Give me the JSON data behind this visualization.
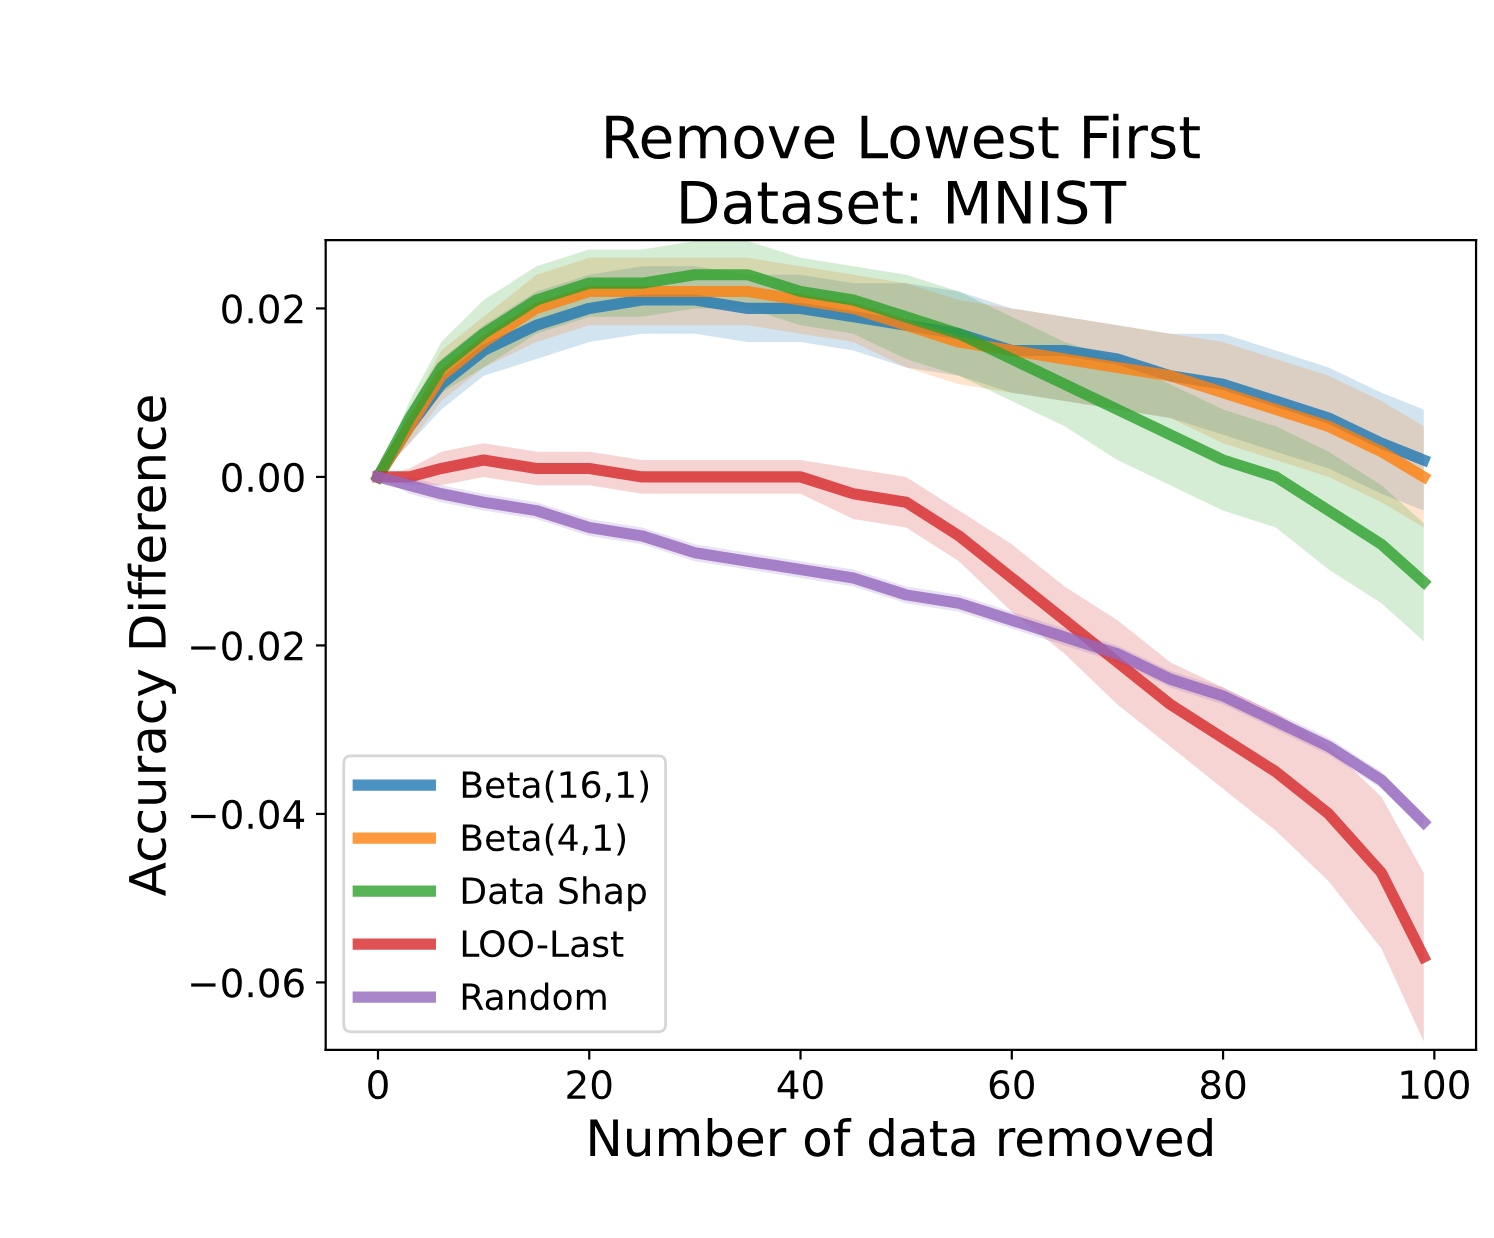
{
  "chart_data": {
    "type": "line",
    "title": "Remove Lowest First\nDataset: MNIST",
    "xlabel": "Number of data removed",
    "ylabel": "Accuracy Difference",
    "x": [
      0,
      3,
      6,
      10,
      15,
      20,
      25,
      30,
      35,
      40,
      45,
      50,
      55,
      60,
      65,
      70,
      75,
      80,
      85,
      90,
      95,
      99
    ],
    "series": [
      {
        "name": "Beta(16,1)",
        "color": "#1f77b4",
        "values": [
          0,
          0.006,
          0.011,
          0.015,
          0.018,
          0.02,
          0.021,
          0.021,
          0.02,
          0.02,
          0.019,
          0.018,
          0.017,
          0.015,
          0.015,
          0.014,
          0.012,
          0.011,
          0.009,
          0.007,
          0.004,
          0.002
        ],
        "lower": [
          0,
          0.004,
          0.008,
          0.012,
          0.014,
          0.016,
          0.017,
          0.017,
          0.016,
          0.016,
          0.015,
          0.013,
          0.012,
          0.01,
          0.009,
          0.008,
          0.007,
          0.005,
          0.003,
          0.001,
          -0.002,
          -0.004
        ],
        "upper": [
          0,
          0.008,
          0.014,
          0.018,
          0.022,
          0.024,
          0.025,
          0.025,
          0.024,
          0.024,
          0.023,
          0.023,
          0.022,
          0.02,
          0.019,
          0.018,
          0.017,
          0.017,
          0.015,
          0.013,
          0.01,
          0.008
        ]
      },
      {
        "name": "Beta(4,1)",
        "color": "#ff7f0e",
        "values": [
          0,
          0.006,
          0.012,
          0.016,
          0.02,
          0.022,
          0.022,
          0.022,
          0.022,
          0.021,
          0.02,
          0.018,
          0.016,
          0.015,
          0.014,
          0.013,
          0.012,
          0.01,
          0.008,
          0.006,
          0.003,
          0
        ],
        "lower": [
          0,
          0.004,
          0.009,
          0.013,
          0.016,
          0.018,
          0.018,
          0.018,
          0.018,
          0.017,
          0.016,
          0.013,
          0.011,
          0.01,
          0.009,
          0.008,
          0.007,
          0.004,
          0.002,
          0,
          -0.003,
          -0.006
        ],
        "upper": [
          0,
          0.008,
          0.015,
          0.019,
          0.024,
          0.026,
          0.026,
          0.026,
          0.026,
          0.025,
          0.024,
          0.023,
          0.021,
          0.02,
          0.019,
          0.018,
          0.017,
          0.016,
          0.014,
          0.012,
          0.009,
          0.006
        ]
      },
      {
        "name": "Data Shap",
        "color": "#2ca02c",
        "values": [
          0,
          0.007,
          0.013,
          0.017,
          0.021,
          0.023,
          0.023,
          0.024,
          0.024,
          0.022,
          0.021,
          0.019,
          0.017,
          0.014,
          0.011,
          0.008,
          0.005,
          0.002,
          0,
          -0.004,
          -0.008,
          -0.0125
        ],
        "lower": [
          0,
          0.005,
          0.01,
          0.013,
          0.017,
          0.019,
          0.019,
          0.02,
          0.02,
          0.018,
          0.017,
          0.014,
          0.012,
          0.009,
          0.006,
          0.002,
          -0.001,
          -0.004,
          -0.006,
          -0.011,
          -0.015,
          -0.0195
        ],
        "upper": [
          0,
          0.009,
          0.016,
          0.021,
          0.025,
          0.027,
          0.027,
          0.028,
          0.028,
          0.026,
          0.025,
          0.024,
          0.022,
          0.019,
          0.016,
          0.014,
          0.011,
          0.008,
          0.006,
          0.003,
          -0.001,
          -0.0055
        ]
      },
      {
        "name": "LOO-Last",
        "color": "#d62728",
        "values": [
          0,
          0,
          0.001,
          0.002,
          0.001,
          0.001,
          0,
          0,
          0,
          0,
          -0.002,
          -0.003,
          -0.007,
          -0.012,
          -0.017,
          -0.022,
          -0.027,
          -0.031,
          -0.035,
          -0.04,
          -0.047,
          -0.057
        ],
        "lower": [
          0,
          -0.001,
          -0.001,
          0,
          -0.001,
          -0.001,
          -0.002,
          -0.002,
          -0.002,
          -0.002,
          -0.005,
          -0.006,
          -0.01,
          -0.016,
          -0.021,
          -0.027,
          -0.032,
          -0.037,
          -0.042,
          -0.048,
          -0.056,
          -0.067
        ],
        "upper": [
          0,
          0.001,
          0.003,
          0.004,
          0.003,
          0.003,
          0.002,
          0.002,
          0.002,
          0.002,
          0.001,
          0,
          -0.004,
          -0.008,
          -0.013,
          -0.017,
          -0.022,
          -0.025,
          -0.028,
          -0.032,
          -0.038,
          -0.047
        ]
      },
      {
        "name": "Random",
        "color": "#9467bd",
        "values": [
          0,
          -0.001,
          -0.002,
          -0.003,
          -0.004,
          -0.006,
          -0.007,
          -0.009,
          -0.01,
          -0.011,
          -0.012,
          -0.014,
          -0.015,
          -0.017,
          -0.019,
          -0.021,
          -0.024,
          -0.026,
          -0.029,
          -0.032,
          -0.036,
          -0.041
        ],
        "lower": [
          0,
          -0.002,
          -0.003,
          -0.004,
          -0.005,
          -0.007,
          -0.008,
          -0.01,
          -0.011,
          -0.012,
          -0.013,
          -0.015,
          -0.016,
          -0.018,
          -0.02,
          -0.022,
          -0.025,
          -0.027,
          -0.03,
          -0.033,
          -0.037,
          -0.042
        ],
        "upper": [
          0,
          0,
          -0.001,
          -0.002,
          -0.003,
          -0.005,
          -0.006,
          -0.008,
          -0.009,
          -0.01,
          -0.011,
          -0.013,
          -0.014,
          -0.016,
          -0.018,
          -0.02,
          -0.023,
          -0.025,
          -0.028,
          -0.031,
          -0.035,
          -0.04
        ]
      }
    ],
    "xlim": [
      -4.95,
      103.95
    ],
    "ylim": [
      -0.068,
      0.0281
    ],
    "xticks": [
      0,
      20,
      40,
      60,
      80,
      100
    ],
    "yticks": [
      {
        "value": 0.02,
        "label": "0.02"
      },
      {
        "value": 0,
        "label": "0.00"
      },
      {
        "value": -0.02,
        "label": "−0.02"
      },
      {
        "value": -0.04,
        "label": "−0.04"
      },
      {
        "value": -0.06,
        "label": "−0.06"
      }
    ],
    "grid": false,
    "legend": "bottom left",
    "marker": "none",
    "line_style": "solid"
  }
}
